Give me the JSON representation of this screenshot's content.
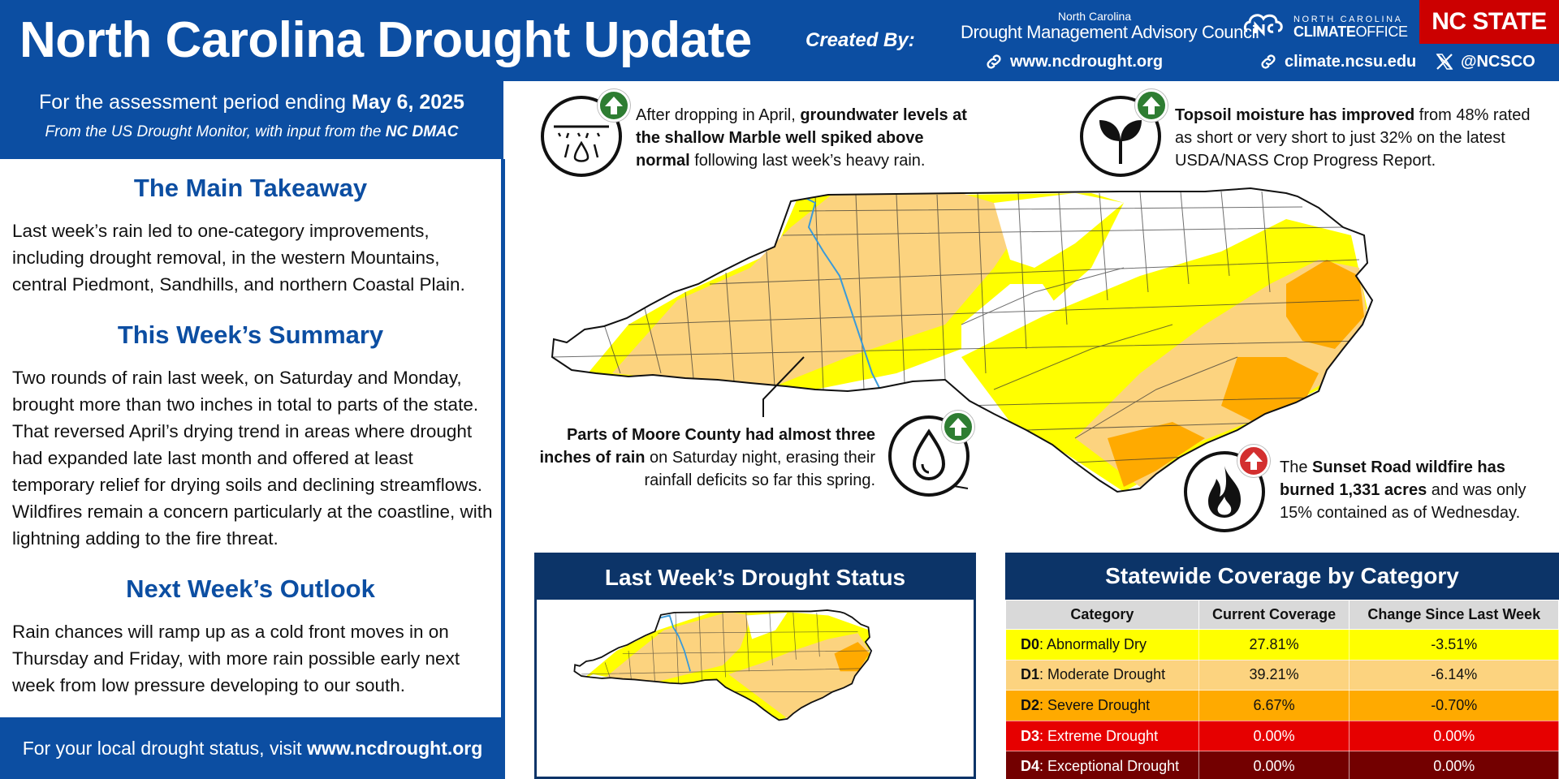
{
  "header": {
    "title": "North Carolina Drought Update",
    "created_by": "Created By:",
    "dmac_small": "North Carolina",
    "dmac_big": "Drought Management Advisory Council",
    "drought_link": "www.ncdrought.org",
    "climate_office_line1": "NORTH CAROLINA",
    "climate_office_line2a": "CLIMATE",
    "climate_office_line2b": "OFFICE",
    "climate_link": "climate.ncsu.edu",
    "social_handle": "@NCSCO",
    "ncstate": "NC STATE"
  },
  "left": {
    "period_prefix": "For the assessment period ending ",
    "period_date": "May 6, 2025",
    "source_prefix": "From the US Drought Monitor, with input from the ",
    "source_org": "NC DMAC",
    "main_takeaway_title": "The Main Takeaway",
    "main_takeaway_body": "Last week’s rain led to one-category improvements, including drought removal, in the western Mountains, central Piedmont, Sandhills, and northern Coastal Plain.",
    "summary_title": "This Week’s Summary",
    "summary_body": "Two rounds of rain last week, on Saturday and Monday, brought more than two inches in total to parts of the state. That reversed April’s drying trend in areas where drought had expanded late last month and offered at least temporary relief for drying soils and declining streamflows. Wildfires remain a concern particularly at the coastline, with lightning adding to the fire threat.",
    "outlook_title": "Next Week’s Outlook",
    "outlook_body": "Rain chances will ramp up as a cold front moves in on Thursday and Friday, with more rain possible early next week from low pressure developing to our south.",
    "footer_prefix": "For your local drought status, visit ",
    "footer_link": "www.ncdrought.org"
  },
  "callouts": {
    "groundwater": {
      "pre": "After dropping in April, ",
      "bold": "groundwater levels at the shallow Marble well spiked above normal",
      "post": " following last week’s heavy rain.",
      "trend": "up"
    },
    "topsoil": {
      "bold": "Topsoil moisture has improved",
      "post": " from 48% rated as short or very short to just 32% on the latest USDA/NASS Crop Progress Report.",
      "trend": "up"
    },
    "moore": {
      "bold": "Parts of Moore County had almost three inches of rain",
      "post": " on Saturday night, erasing their rainfall deficits so far this spring.",
      "trend": "up"
    },
    "wildfire": {
      "pre": "The ",
      "bold1": "Sunset Road wildfire has burned 1,331 acres",
      "post": " and was only 15% contained as of Wednesday.",
      "trend": "up"
    }
  },
  "last_week_panel": {
    "title": "Last Week’s Drought Status"
  },
  "coverage": {
    "title": "Statewide Coverage by Category",
    "headers": [
      "Category",
      "Current Coverage",
      "Change Since Last Week"
    ],
    "rows": [
      {
        "code": "D0",
        "name": ": Abnormally Dry",
        "current": "27.81%",
        "change": "-3.51%",
        "color": "#ffff00",
        "text_color": "#111111"
      },
      {
        "code": "D1",
        "name": ": Moderate Drought",
        "current": "39.21%",
        "change": "-6.14%",
        "color": "#fcd37f",
        "text_color": "#111111"
      },
      {
        "code": "D2",
        "name": ": Severe Drought",
        "current": "6.67%",
        "change": "-0.70%",
        "color": "#ffaa00",
        "text_color": "#111111"
      },
      {
        "code": "D3",
        "name": ": Extreme Drought",
        "current": "0.00%",
        "change": "0.00%",
        "color": "#e60000",
        "text_color": "#ffffff"
      },
      {
        "code": "D4",
        "name": ": Exceptional Drought",
        "current": "0.00%",
        "change": "0.00%",
        "color": "#730000",
        "text_color": "#ffffff"
      }
    ]
  },
  "colors": {
    "brand_blue": "#0c4ea2",
    "panel_navy": "#0c3468",
    "ncstate_red": "#cc0000",
    "d0": "#ffff00",
    "d1": "#fcd37f",
    "d2": "#ffaa00",
    "river": "#3a9ad9"
  },
  "icons": [
    "link-icon",
    "x-logo-icon",
    "well-icon",
    "sprout-icon",
    "raindrop-icon",
    "flame-icon",
    "up-arrow-icon"
  ]
}
